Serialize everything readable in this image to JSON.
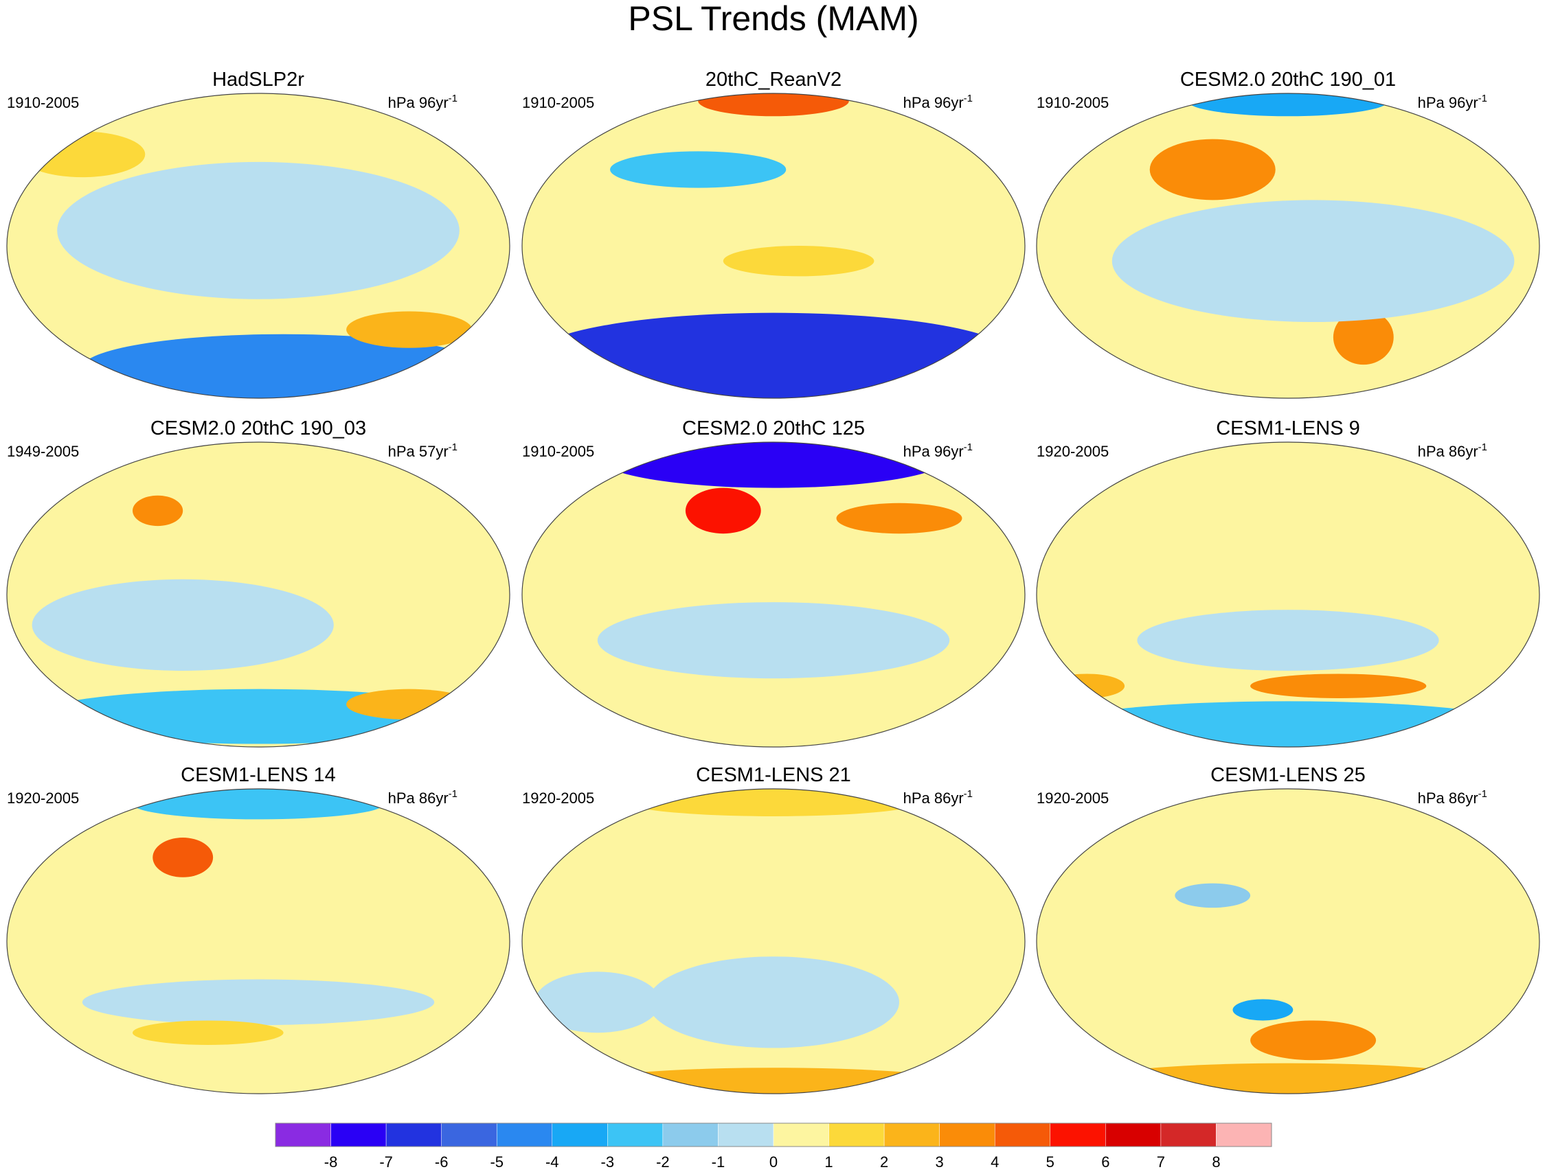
{
  "title": "PSL Trends (MAM)",
  "panels": [
    {
      "title": "HadSLP2r",
      "period": "1910-2005",
      "units": {
        "base": "hPa 96yr",
        "sup": "-1"
      }
    },
    {
      "title": "20thC_ReanV2",
      "period": "1910-2005",
      "units": {
        "base": "hPa 96yr",
        "sup": "-1"
      }
    },
    {
      "title": "CESM2.0 20thC 190_01",
      "period": "1910-2005",
      "units": {
        "base": "hPa 96yr",
        "sup": "-1"
      }
    },
    {
      "title": "CESM2.0 20thC 190_03",
      "period": "1949-2005",
      "units": {
        "base": "hPa 57yr",
        "sup": "-1"
      }
    },
    {
      "title": "CESM2.0 20thC 125",
      "period": "1910-2005",
      "units": {
        "base": "hPa 96yr",
        "sup": "-1"
      }
    },
    {
      "title": "CESM1-LENS 9",
      "period": "1920-2005",
      "units": {
        "base": "hPa 86yr",
        "sup": "-1"
      }
    },
    {
      "title": "CESM1-LENS 14",
      "period": "1920-2005",
      "units": {
        "base": "hPa 86yr",
        "sup": "-1"
      }
    },
    {
      "title": "CESM1-LENS 21",
      "period": "1920-2005",
      "units": {
        "base": "hPa 86yr",
        "sup": "-1"
      }
    },
    {
      "title": "CESM1-LENS 25",
      "period": "1920-2005",
      "units": {
        "base": "hPa 86yr",
        "sup": "-1"
      }
    }
  ],
  "colorbar": {
    "labels": [
      -8,
      -7,
      -6,
      -5,
      -4,
      -3,
      -2,
      -1,
      0,
      1,
      2,
      3,
      4,
      5,
      6,
      7,
      8
    ],
    "colors": [
      "#8a2be2",
      "#2a00f5",
      "#2233e0",
      "#3a66e0",
      "#2a88f0",
      "#18a8f5",
      "#3cc4f5",
      "#8ccbec",
      "#b8dff0",
      "#fdf5a0",
      "#fcd93a",
      "#fbb41a",
      "#fa8c08",
      "#f55a08",
      "#fc1200",
      "#d80000",
      "#d42828",
      "#fcb4b4"
    ]
  }
}
